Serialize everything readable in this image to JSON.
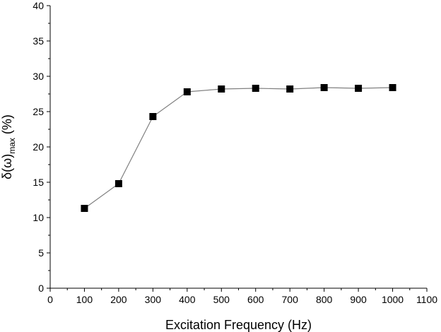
{
  "chart_data": {
    "type": "line",
    "title": "",
    "xlabel": "Excitation Frequency (Hz)",
    "ylabel": {
      "prefix": "δ(ω)",
      "subscript": "max",
      "suffix": " (%)"
    },
    "xlim": [
      0,
      1100
    ],
    "ylim": [
      0,
      40
    ],
    "xticks": [
      0,
      100,
      200,
      300,
      400,
      500,
      600,
      700,
      800,
      900,
      1000,
      1100
    ],
    "yticks": [
      0,
      5,
      10,
      15,
      20,
      25,
      30,
      35,
      40
    ],
    "grid": false,
    "series": [
      {
        "name": "δ(ω)max",
        "marker": "square",
        "x": [
          100,
          200,
          300,
          400,
          500,
          600,
          700,
          800,
          900,
          1000
        ],
        "y": [
          11.3,
          14.8,
          24.3,
          27.8,
          28.2,
          28.3,
          28.2,
          28.4,
          28.3,
          28.4
        ]
      }
    ],
    "colors": {
      "line": "#808080",
      "marker": "#000000",
      "axis": "#000000"
    }
  }
}
